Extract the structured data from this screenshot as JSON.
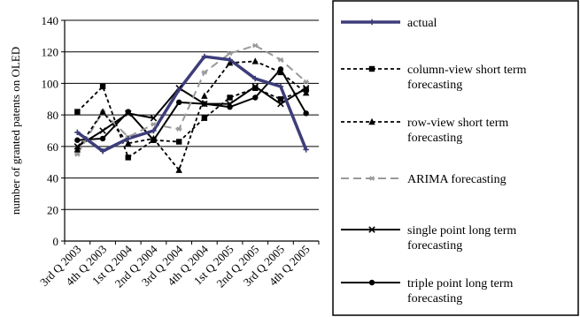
{
  "chart_data": {
    "type": "line",
    "title": "",
    "xlabel": "",
    "ylabel": "number of granted patents on OLED",
    "ylim": [
      0,
      140
    ],
    "yticks": [
      0,
      20,
      40,
      60,
      80,
      100,
      120,
      140
    ],
    "grid": true,
    "legend_position": "right",
    "categories": [
      "3rd Q 2003",
      "4th Q 2003",
      "1st Q 2004",
      "2nd Q 2004",
      "3rd Q 2004",
      "4th Q 2004",
      "1st Q 2005",
      "2nd Q 2005",
      "3rd Q 2005",
      "4th Q 2005"
    ],
    "series": [
      {
        "name": "actual",
        "legend_lines": [
          "actual"
        ],
        "values": [
          69,
          57,
          65,
          70,
          96,
          117,
          115,
          103,
          98,
          58
        ],
        "color": "#3d3d7a",
        "style": "solid",
        "width": 3.5,
        "marker": "plus"
      },
      {
        "name": "column-view short term forecasting",
        "legend_lines": [
          "column-view short term",
          "forecasting"
        ],
        "values": [
          82,
          98,
          53,
          64,
          63,
          78,
          91,
          97,
          90,
          96
        ],
        "color": "#000000",
        "style": "dotted",
        "width": 1.8,
        "marker": "square"
      },
      {
        "name": "row-view short term forecasting",
        "legend_lines": [
          "row-view short term",
          "forecasting"
        ],
        "values": [
          58,
          82,
          62,
          65,
          45,
          92,
          113,
          114,
          107,
          94
        ],
        "color": "#000000",
        "style": "dotted",
        "width": 1.8,
        "marker": "triangle"
      },
      {
        "name": "ARIMA forecasting",
        "legend_lines": [
          "ARIMA forecasting"
        ],
        "values": [
          55,
          82,
          66,
          74,
          71,
          107,
          119,
          124,
          115,
          101
        ],
        "color": "#9a9a9a",
        "style": "dashed",
        "width": 2.0,
        "marker": "star"
      },
      {
        "name": "single point long term forecasting",
        "legend_lines": [
          "single point long term",
          "forecasting"
        ],
        "values": [
          60,
          70,
          81,
          78,
          97,
          87,
          87,
          98,
          87,
          97
        ],
        "color": "#000000",
        "style": "solid",
        "width": 2.0,
        "marker": "cross"
      },
      {
        "name": "triple point long term forecasting",
        "legend_lines": [
          "triple point long term",
          "forecasting"
        ],
        "values": [
          64,
          65,
          82,
          64,
          88,
          87,
          85,
          91,
          109,
          81
        ],
        "color": "#000000",
        "style": "solid",
        "width": 2.0,
        "marker": "circle"
      }
    ]
  }
}
